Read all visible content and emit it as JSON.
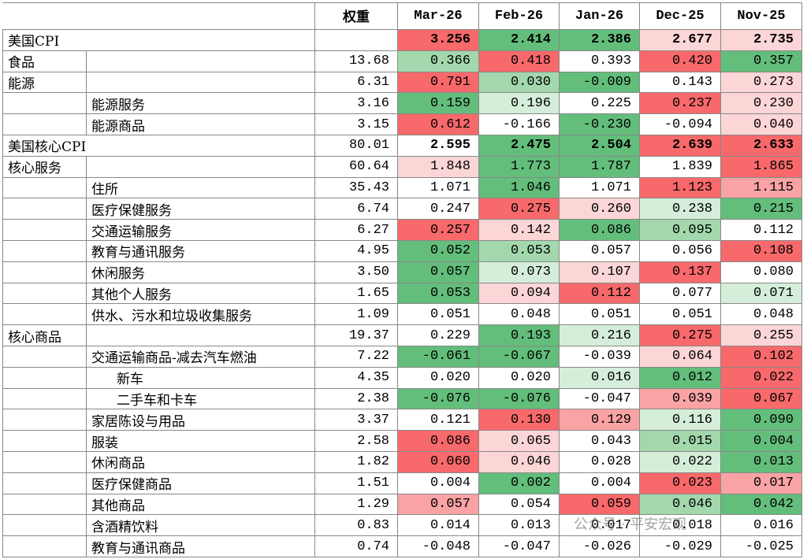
{
  "table": {
    "header": [
      "权重",
      "Mar-26",
      "Feb-26",
      "Jan-26",
      "Dec-25",
      "Nov-25"
    ],
    "rows": [
      {
        "label": "美国CPI",
        "level": 0,
        "bold": true,
        "values": [
          "3.256",
          "2.414",
          "2.386",
          "2.677",
          "2.735"
        ],
        "colors": [
          "#f8696b",
          "#63be7b",
          "#63be7b",
          "#fcd5d6",
          "#fcd5d6"
        ]
      },
      {
        "label": "食品",
        "level": 0,
        "weight": "13.68",
        "values": [
          "0.366",
          "0.418",
          "0.393",
          "0.420",
          "0.357"
        ],
        "colors": [
          "#a3d8ad",
          "#f8696b",
          "#ffffff",
          "#f8696b",
          "#63be7b"
        ]
      },
      {
        "label": "能源",
        "level": 0,
        "weight": "6.31",
        "values": [
          "0.791",
          "0.030",
          "-0.009",
          "0.143",
          "0.273"
        ],
        "colors": [
          "#f8696b",
          "#a3d8ad",
          "#63be7b",
          "#ffffff",
          "#fcd5d6"
        ]
      },
      {
        "label": "能源服务",
        "level": 1,
        "weight": "3.16",
        "values": [
          "0.159",
          "0.196",
          "0.225",
          "0.237",
          "0.230"
        ],
        "colors": [
          "#63be7b",
          "#d5eed9",
          "#ffffff",
          "#f8696b",
          "#fcd5d6"
        ]
      },
      {
        "label": "能源商品",
        "level": 1,
        "weight": "3.15",
        "values": [
          "0.612",
          "-0.166",
          "-0.230",
          "-0.094",
          "0.040"
        ],
        "colors": [
          "#f8696b",
          "#ffffff",
          "#63be7b",
          "#ffffff",
          "#fcd5d6"
        ]
      },
      {
        "label": "美国核心CPI",
        "level": 0,
        "bold": true,
        "weight": "80.01",
        "values": [
          "2.595",
          "2.475",
          "2.504",
          "2.639",
          "2.633"
        ],
        "colors": [
          "#ffffff",
          "#63be7b",
          "#63be7b",
          "#f8696b",
          "#f8696b"
        ]
      },
      {
        "label": "核心服务",
        "level": 0,
        "weight": "60.64",
        "values": [
          "1.848",
          "1.773",
          "1.787",
          "1.839",
          "1.865"
        ],
        "colors": [
          "#fcd5d6",
          "#63be7b",
          "#63be7b",
          "#ffffff",
          "#f8696b"
        ]
      },
      {
        "label": "住所",
        "level": 1,
        "weight": "35.43",
        "values": [
          "1.071",
          "1.046",
          "1.071",
          "1.123",
          "1.115"
        ],
        "colors": [
          "#ffffff",
          "#63be7b",
          "#ffffff",
          "#f8696b",
          "#f9a3a4"
        ]
      },
      {
        "label": "医疗保健服务",
        "level": 1,
        "weight": "6.74",
        "values": [
          "0.247",
          "0.275",
          "0.260",
          "0.238",
          "0.215"
        ],
        "colors": [
          "#ffffff",
          "#f8696b",
          "#fcd5d6",
          "#d5eed9",
          "#63be7b"
        ]
      },
      {
        "label": "交通运输服务",
        "level": 1,
        "weight": "6.27",
        "values": [
          "0.257",
          "0.142",
          "0.086",
          "0.095",
          "0.112"
        ],
        "colors": [
          "#f8696b",
          "#fcd5d6",
          "#63be7b",
          "#a3d8ad",
          "#ffffff"
        ]
      },
      {
        "label": "教育与通讯服务",
        "level": 1,
        "weight": "4.95",
        "values": [
          "0.052",
          "0.053",
          "0.057",
          "0.056",
          "0.108"
        ],
        "colors": [
          "#63be7b",
          "#a3d8ad",
          "#ffffff",
          "#ffffff",
          "#f8696b"
        ]
      },
      {
        "label": "休闲服务",
        "level": 1,
        "weight": "3.50",
        "values": [
          "0.057",
          "0.073",
          "0.107",
          "0.137",
          "0.080"
        ],
        "colors": [
          "#63be7b",
          "#d5eed9",
          "#fcd5d6",
          "#f8696b",
          "#ffffff"
        ]
      },
      {
        "label": "其他个人服务",
        "level": 1,
        "weight": "1.65",
        "values": [
          "0.053",
          "0.094",
          "0.112",
          "0.077",
          "0.071"
        ],
        "colors": [
          "#63be7b",
          "#fcd5d6",
          "#f8696b",
          "#ffffff",
          "#d5eed9"
        ]
      },
      {
        "label": "供水、污水和垃圾收集服务",
        "level": 1,
        "weight": "1.09",
        "values": [
          "0.051",
          "0.048",
          "0.051",
          "0.051",
          "0.048"
        ],
        "colors": [
          "#ffffff",
          "#ffffff",
          "#ffffff",
          "#ffffff",
          "#ffffff"
        ]
      },
      {
        "label": "核心商品",
        "level": 0,
        "weight": "19.37",
        "values": [
          "0.229",
          "0.193",
          "0.216",
          "0.275",
          "0.255"
        ],
        "colors": [
          "#ffffff",
          "#63be7b",
          "#d5eed9",
          "#f8696b",
          "#fcd5d6"
        ]
      },
      {
        "label": "交通运输商品-减去汽车燃油",
        "level": 1,
        "weight": "7.22",
        "values": [
          "-0.061",
          "-0.067",
          "-0.039",
          "0.064",
          "0.102"
        ],
        "colors": [
          "#63be7b",
          "#63be7b",
          "#ffffff",
          "#fcd5d6",
          "#f8696b"
        ]
      },
      {
        "label": "新车",
        "level": 2,
        "weight": "4.35",
        "values": [
          "0.020",
          "0.020",
          "0.016",
          "0.012",
          "0.022"
        ],
        "colors": [
          "#ffffff",
          "#ffffff",
          "#d5eed9",
          "#63be7b",
          "#f8696b"
        ]
      },
      {
        "label": "二手车和卡车",
        "level": 2,
        "weight": "2.38",
        "values": [
          "-0.076",
          "-0.076",
          "-0.047",
          "0.039",
          "0.067"
        ],
        "colors": [
          "#63be7b",
          "#63be7b",
          "#ffffff",
          "#f9a3a4",
          "#f8696b"
        ]
      },
      {
        "label": "家居陈设与用品",
        "level": 1,
        "weight": "3.37",
        "values": [
          "0.121",
          "0.130",
          "0.129",
          "0.116",
          "0.090"
        ],
        "colors": [
          "#ffffff",
          "#f8696b",
          "#f9a3a4",
          "#d5eed9",
          "#63be7b"
        ]
      },
      {
        "label": "服装",
        "level": 1,
        "weight": "2.58",
        "values": [
          "0.086",
          "0.065",
          "0.043",
          "0.015",
          "0.004"
        ],
        "colors": [
          "#f8696b",
          "#fcd5d6",
          "#ffffff",
          "#a3d8ad",
          "#63be7b"
        ]
      },
      {
        "label": "休闲商品",
        "level": 1,
        "weight": "1.82",
        "values": [
          "0.060",
          "0.046",
          "0.028",
          "0.022",
          "0.013"
        ],
        "colors": [
          "#f8696b",
          "#fcd5d6",
          "#ffffff",
          "#d5eed9",
          "#63be7b"
        ]
      },
      {
        "label": "医疗保健商品",
        "level": 1,
        "weight": "1.51",
        "values": [
          "0.004",
          "0.002",
          "0.004",
          "0.023",
          "0.017"
        ],
        "colors": [
          "#ffffff",
          "#63be7b",
          "#ffffff",
          "#f8696b",
          "#f9a3a4"
        ]
      },
      {
        "label": "其他商品",
        "level": 1,
        "weight": "1.29",
        "values": [
          "0.057",
          "0.054",
          "0.059",
          "0.046",
          "0.042"
        ],
        "colors": [
          "#f9a3a4",
          "#ffffff",
          "#f8696b",
          "#a3d8ad",
          "#63be7b"
        ]
      },
      {
        "label": "含酒精饮料",
        "level": 1,
        "weight": "0.83",
        "values": [
          "0.014",
          "0.013",
          "0.017",
          "0.018",
          "0.016"
        ],
        "colors": [
          "#ffffff",
          "#ffffff",
          "#ffffff",
          "#ffffff",
          "#ffffff"
        ]
      },
      {
        "label": "教育与通讯商品",
        "level": 1,
        "weight": "0.74",
        "values": [
          "-0.048",
          "-0.047",
          "-0.026",
          "-0.029",
          "-0.025"
        ],
        "colors": [
          "#ffffff",
          "#ffffff",
          "#ffffff",
          "#ffffff",
          "#ffffff"
        ]
      }
    ]
  },
  "watermark": "公众号 · 平安宏观"
}
